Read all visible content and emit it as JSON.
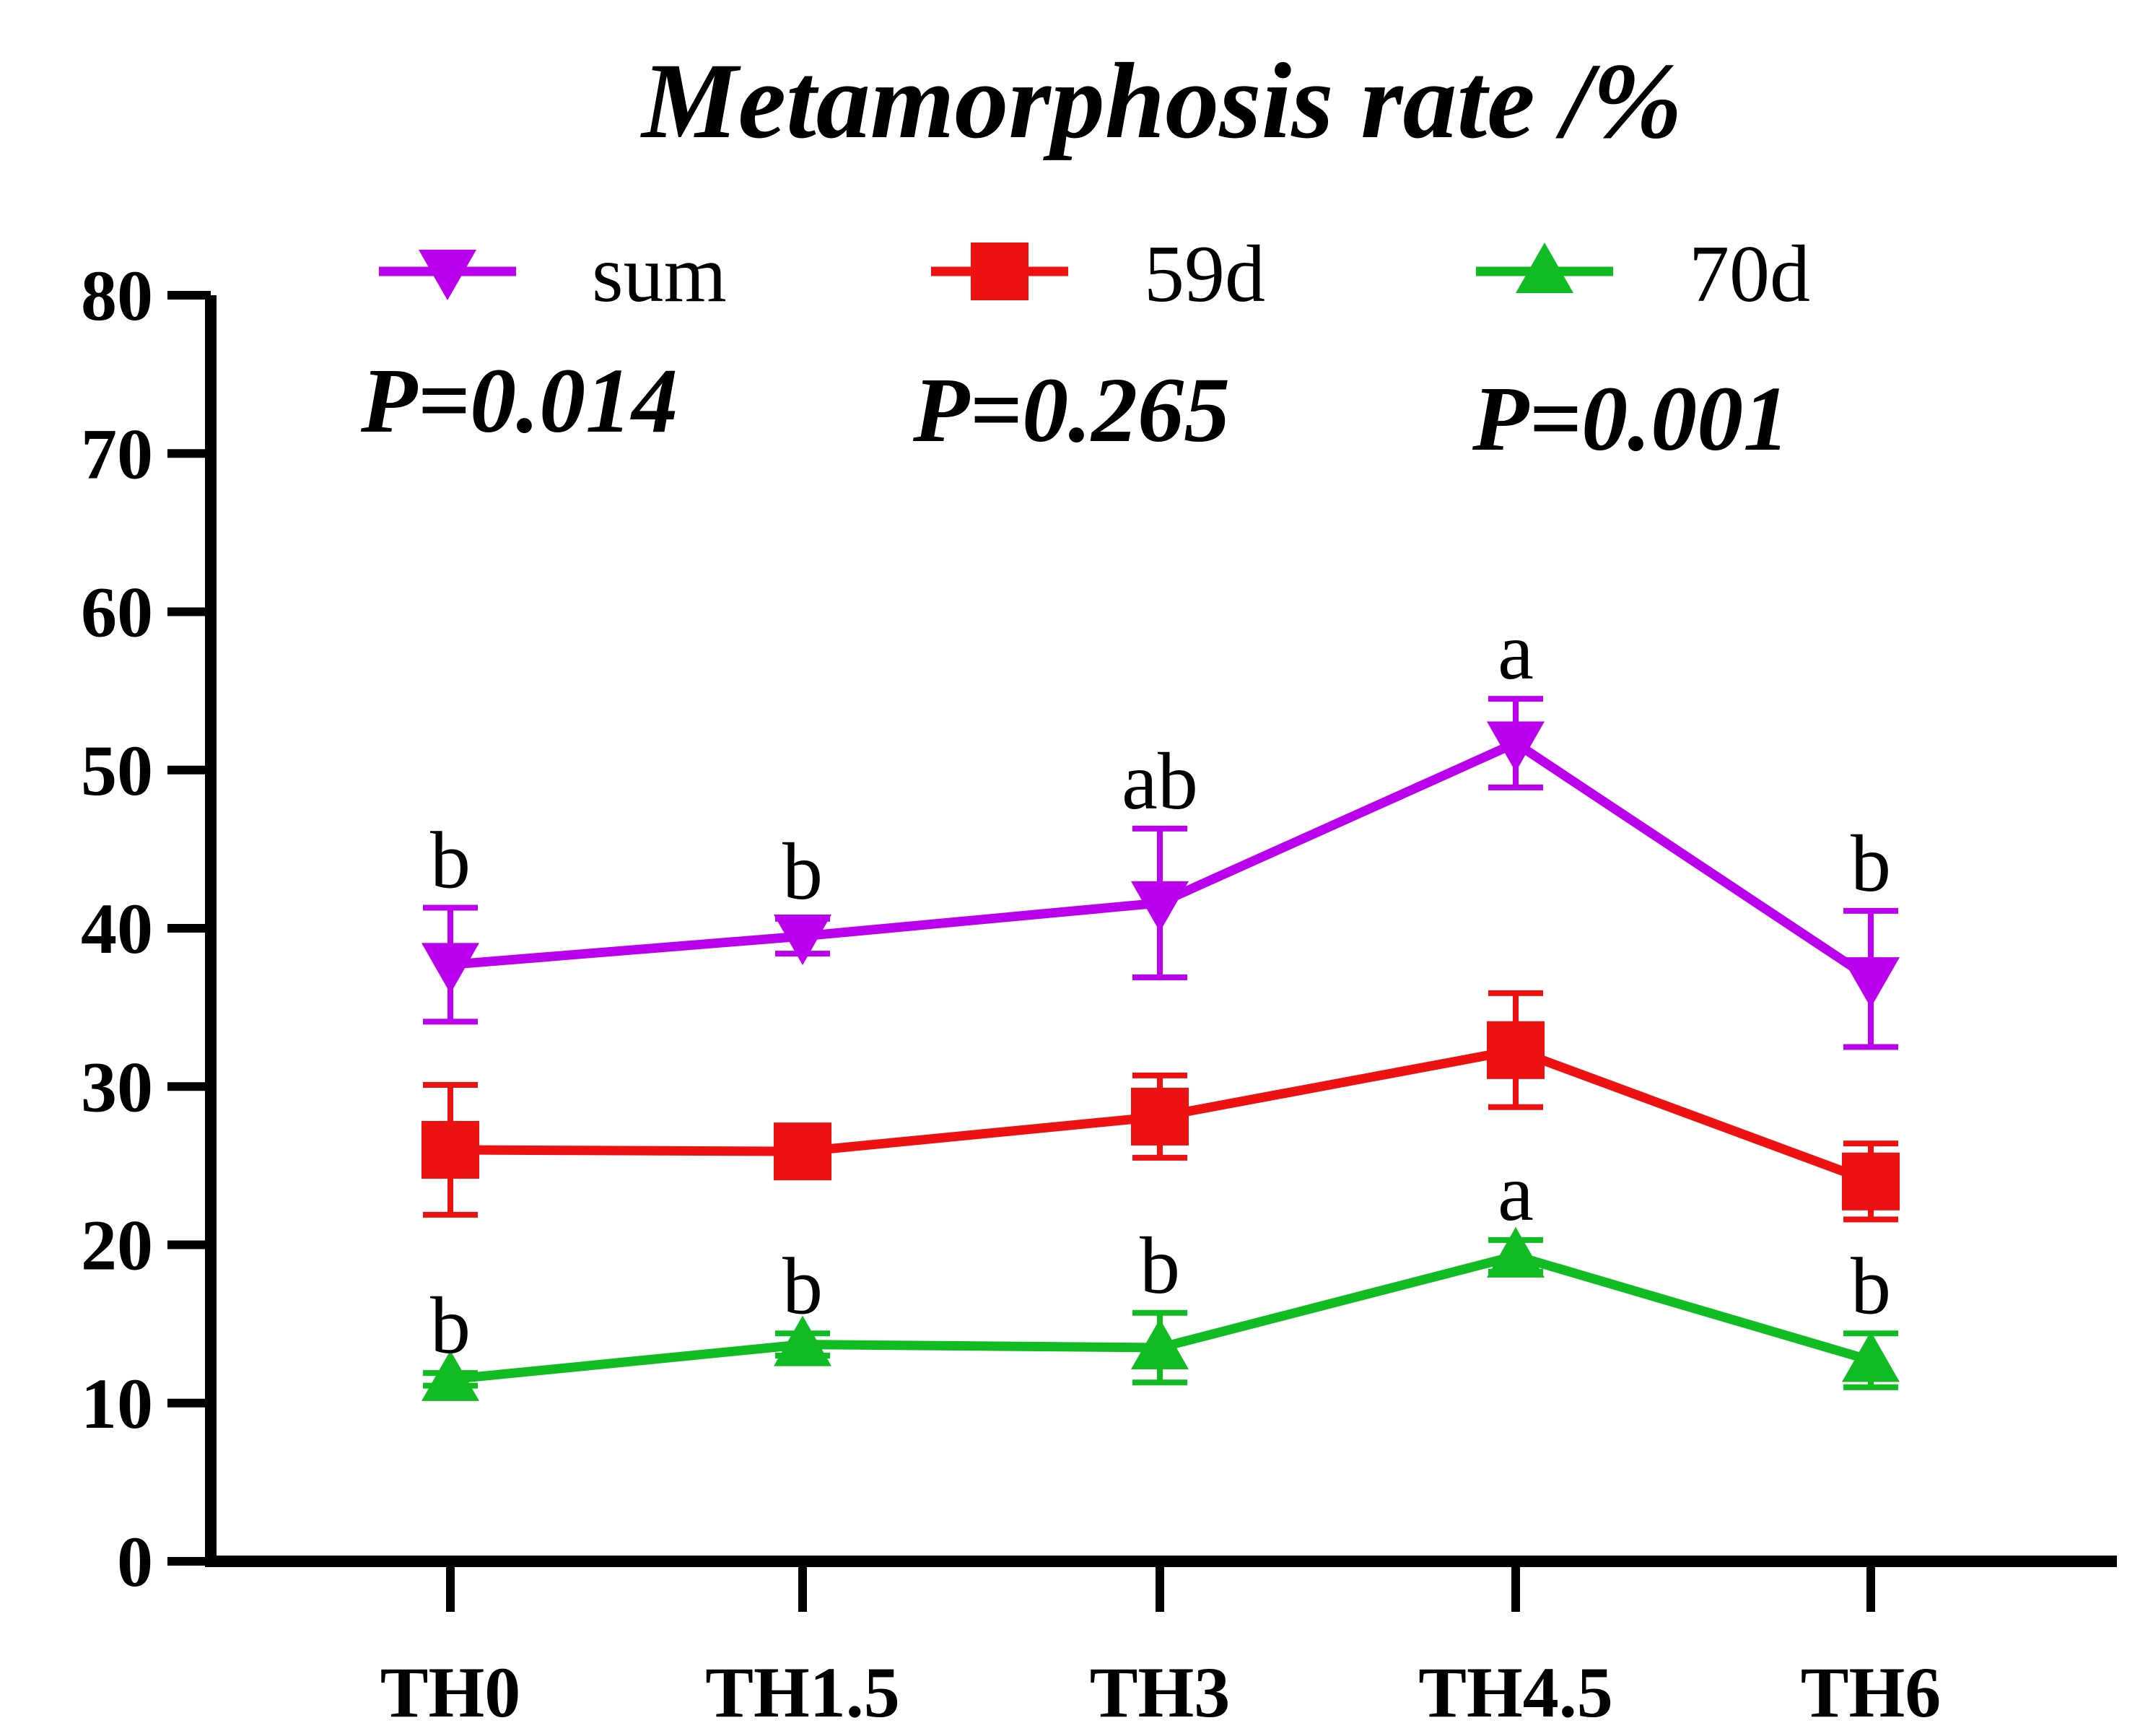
{
  "chart_data": {
    "type": "line",
    "title": "Metamorphosis rate /%",
    "xlabel": "",
    "ylabel": "",
    "categories": [
      "TH0",
      "TH1.5",
      "TH3",
      "TH4.5",
      "TH6"
    ],
    "ylim": [
      0,
      80
    ],
    "yticks": [
      0,
      10,
      20,
      30,
      40,
      50,
      60,
      70,
      80
    ],
    "series": [
      {
        "name": "sum",
        "color": "#bb00ee",
        "marker": "triangle-down",
        "values": [
          37.7,
          39.5,
          41.6,
          51.7,
          36.8
        ],
        "errors": [
          3.6,
          1.1,
          4.7,
          2.8,
          4.3
        ],
        "labels": [
          "b",
          "b",
          "ab",
          "a",
          "b"
        ],
        "p_value": "P=0.014"
      },
      {
        "name": "59d",
        "color": "#ee1111",
        "marker": "square",
        "values": [
          26.0,
          25.9,
          28.1,
          32.3,
          24.0
        ],
        "errors": [
          4.1,
          0.7,
          2.6,
          3.6,
          2.4
        ],
        "labels": [
          "",
          "",
          "",
          "",
          ""
        ],
        "p_value": "P=0.265"
      },
      {
        "name": "70d",
        "color": "#11bb22",
        "marker": "triangle-up",
        "values": [
          11.5,
          13.7,
          13.5,
          19.3,
          12.7
        ],
        "errors": [
          0.4,
          0.7,
          2.2,
          1.0,
          1.7
        ],
        "labels": [
          "b",
          "b",
          "b",
          "a",
          "b"
        ],
        "p_value": "P=0.001"
      }
    ],
    "legend_position": "top"
  }
}
